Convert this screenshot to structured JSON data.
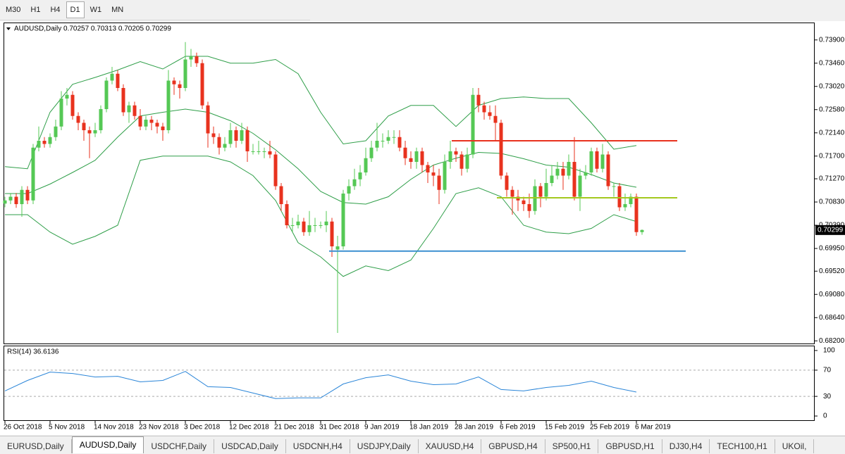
{
  "toolbar": {
    "timeframes": [
      "M30",
      "H1",
      "H4",
      "D1",
      "W1",
      "MN"
    ],
    "active": 3
  },
  "chart": {
    "header": "AUDUSD,Daily  0.70257 0.70313 0.70205 0.70299",
    "ylim": [
      0.6815,
      0.7423
    ],
    "yticks": [
      {
        "value": 0.739,
        "label": "0.73900"
      },
      {
        "value": 0.7346,
        "label": "0.73460"
      },
      {
        "value": 0.7302,
        "label": "0.73020"
      },
      {
        "value": 0.7258,
        "label": "0.72580"
      },
      {
        "value": 0.7214,
        "label": "0.72140"
      },
      {
        "value": 0.717,
        "label": "0.71700"
      },
      {
        "value": 0.7127,
        "label": "0.71270"
      },
      {
        "value": 0.7083,
        "label": "0.70830"
      },
      {
        "value": 0.7039,
        "label": "0.70390"
      },
      {
        "value": 0.6995,
        "label": "0.69950"
      },
      {
        "value": 0.6952,
        "label": "0.69520"
      },
      {
        "value": 0.6908,
        "label": "0.69080"
      },
      {
        "value": 0.6864,
        "label": "0.68640"
      },
      {
        "value": 0.682,
        "label": "0.68200"
      }
    ],
    "bull_color": "#55c855",
    "bear_color": "#e8321e",
    "candles": [
      [
        0.708,
        0.7093,
        0.7073,
        0.7086
      ],
      [
        0.7086,
        0.71,
        0.7079,
        0.7093
      ],
      [
        0.7093,
        0.71,
        0.7072,
        0.7079
      ],
      [
        0.7079,
        0.7113,
        0.7055,
        0.7106
      ],
      [
        0.7106,
        0.7113,
        0.7079,
        0.7086
      ],
      [
        0.7086,
        0.7193,
        0.7079,
        0.7186
      ],
      [
        0.7186,
        0.7226,
        0.7179,
        0.7199
      ],
      [
        0.7199,
        0.7206,
        0.7186,
        0.7193
      ],
      [
        0.7193,
        0.7213,
        0.7186,
        0.7206
      ],
      [
        0.7206,
        0.7239,
        0.7199,
        0.7226
      ],
      [
        0.7226,
        0.7293,
        0.7219,
        0.7279
      ],
      [
        0.7279,
        0.7299,
        0.7266,
        0.7286
      ],
      [
        0.7286,
        0.7293,
        0.7239,
        0.7246
      ],
      [
        0.7246,
        0.7253,
        0.7219,
        0.7233
      ],
      [
        0.7233,
        0.7239,
        0.7199,
        0.7219
      ],
      [
        0.7219,
        0.7226,
        0.7166,
        0.7213
      ],
      [
        0.7213,
        0.7233,
        0.7206,
        0.7219
      ],
      [
        0.7219,
        0.7266,
        0.7213,
        0.7259
      ],
      [
        0.7259,
        0.7319,
        0.7253,
        0.7313
      ],
      [
        0.7313,
        0.7339,
        0.7306,
        0.7326
      ],
      [
        0.7326,
        0.7333,
        0.7293,
        0.7299
      ],
      [
        0.7299,
        0.7306,
        0.7246,
        0.7253
      ],
      [
        0.7253,
        0.7273,
        0.7233,
        0.7266
      ],
      [
        0.7266,
        0.7273,
        0.7239,
        0.7246
      ],
      [
        0.7246,
        0.7259,
        0.7219,
        0.7226
      ],
      [
        0.7226,
        0.7246,
        0.7219,
        0.7239
      ],
      [
        0.7239,
        0.7246,
        0.7219,
        0.7233
      ],
      [
        0.7233,
        0.7239,
        0.7213,
        0.7226
      ],
      [
        0.7226,
        0.7233,
        0.7199,
        0.7219
      ],
      [
        0.7219,
        0.7333,
        0.7213,
        0.7313
      ],
      [
        0.7313,
        0.7319,
        0.7286,
        0.7306
      ],
      [
        0.7306,
        0.7313,
        0.7279,
        0.7299
      ],
      [
        0.7299,
        0.7386,
        0.7293,
        0.7353
      ],
      [
        0.7353,
        0.7373,
        0.7339,
        0.7359
      ],
      [
        0.7359,
        0.7366,
        0.7339,
        0.7346
      ],
      [
        0.7346,
        0.7353,
        0.7259,
        0.7266
      ],
      [
        0.7266,
        0.7273,
        0.7186,
        0.7213
      ],
      [
        0.7213,
        0.7226,
        0.7193,
        0.7206
      ],
      [
        0.7206,
        0.7213,
        0.7173,
        0.7186
      ],
      [
        0.7186,
        0.7206,
        0.7179,
        0.7193
      ],
      [
        0.7193,
        0.7233,
        0.7186,
        0.7219
      ],
      [
        0.7219,
        0.7226,
        0.7186,
        0.7199
      ],
      [
        0.7199,
        0.7233,
        0.7193,
        0.7219
      ],
      [
        0.7219,
        0.7226,
        0.7159,
        0.7179
      ],
      [
        0.7179,
        0.7193,
        0.7173,
        0.7179
      ],
      [
        0.7179,
        0.7199,
        0.7173,
        0.7179
      ],
      [
        0.7179,
        0.7186,
        0.7166,
        0.7179
      ],
      [
        0.7179,
        0.7199,
        0.7166,
        0.7173
      ],
      [
        0.7173,
        0.7179,
        0.7106,
        0.7113
      ],
      [
        0.7113,
        0.7119,
        0.7066,
        0.7079
      ],
      [
        0.7079,
        0.7086,
        0.7033,
        0.7039
      ],
      [
        0.7039,
        0.7053,
        0.7026,
        0.7039
      ],
      [
        0.7039,
        0.7059,
        0.7033,
        0.7046
      ],
      [
        0.7046,
        0.7053,
        0.7019,
        0.7026
      ],
      [
        0.7026,
        0.7066,
        0.7019,
        0.7039
      ],
      [
        0.7039,
        0.7053,
        0.7026,
        0.7039
      ],
      [
        0.7039,
        0.7046,
        0.7033,
        0.7039
      ],
      [
        0.7039,
        0.7066,
        0.7026,
        0.7046
      ],
      [
        0.7046,
        0.7053,
        0.6979,
        0.6999
      ],
      [
        0.6993,
        0.7019,
        0.6835,
        0.6999
      ],
      [
        0.6999,
        0.7106,
        0.6993,
        0.7099
      ],
      [
        0.7099,
        0.7126,
        0.7086,
        0.7113
      ],
      [
        0.7113,
        0.7146,
        0.7106,
        0.7126
      ],
      [
        0.7126,
        0.7153,
        0.7113,
        0.7139
      ],
      [
        0.7139,
        0.7186,
        0.7133,
        0.7166
      ],
      [
        0.7166,
        0.7199,
        0.7159,
        0.7186
      ],
      [
        0.7186,
        0.7233,
        0.7179,
        0.7199
      ],
      [
        0.7199,
        0.7213,
        0.7186,
        0.7199
      ],
      [
        0.7199,
        0.7219,
        0.7193,
        0.7206
      ],
      [
        0.7206,
        0.7219,
        0.7193,
        0.7206
      ],
      [
        0.7206,
        0.7219,
        0.7179,
        0.7186
      ],
      [
        0.7186,
        0.7199,
        0.7153,
        0.7166
      ],
      [
        0.7166,
        0.7179,
        0.7146,
        0.7159
      ],
      [
        0.7159,
        0.7186,
        0.7146,
        0.7179
      ],
      [
        0.7179,
        0.7186,
        0.7139,
        0.7153
      ],
      [
        0.7153,
        0.7159,
        0.7119,
        0.7139
      ],
      [
        0.7139,
        0.7153,
        0.7113,
        0.7133
      ],
      [
        0.7133,
        0.7146,
        0.7079,
        0.7106
      ],
      [
        0.7106,
        0.7173,
        0.7099,
        0.7159
      ],
      [
        0.7159,
        0.7199,
        0.7146,
        0.7179
      ],
      [
        0.7179,
        0.7186,
        0.7159,
        0.7173
      ],
      [
        0.7173,
        0.7179,
        0.7133,
        0.7146
      ],
      [
        0.7146,
        0.7186,
        0.7139,
        0.7173
      ],
      [
        0.7173,
        0.7299,
        0.7166,
        0.7286
      ],
      [
        0.7286,
        0.7299,
        0.7253,
        0.7266
      ],
      [
        0.7266,
        0.7273,
        0.7239,
        0.7253
      ],
      [
        0.7253,
        0.7266,
        0.7239,
        0.7246
      ],
      [
        0.7246,
        0.7266,
        0.7199,
        0.7233
      ],
      [
        0.7233,
        0.7239,
        0.7126,
        0.7133
      ],
      [
        0.7133,
        0.7139,
        0.7093,
        0.7106
      ],
      [
        0.7106,
        0.7113,
        0.7059,
        0.7093
      ],
      [
        0.7093,
        0.7106,
        0.7066,
        0.7086
      ],
      [
        0.7086,
        0.7093,
        0.7066,
        0.7079
      ],
      [
        0.7079,
        0.7099,
        0.7053,
        0.7066
      ],
      [
        0.7066,
        0.7126,
        0.7059,
        0.7113
      ],
      [
        0.7113,
        0.7119,
        0.7073,
        0.7093
      ],
      [
        0.7093,
        0.7146,
        0.7086,
        0.7119
      ],
      [
        0.7119,
        0.7153,
        0.7113,
        0.7133
      ],
      [
        0.7133,
        0.7159,
        0.7126,
        0.7146
      ],
      [
        0.7146,
        0.7159,
        0.7106,
        0.7133
      ],
      [
        0.7133,
        0.7173,
        0.7126,
        0.7159
      ],
      [
        0.7159,
        0.7206,
        0.7086,
        0.7093
      ],
      [
        0.7093,
        0.7146,
        0.7066,
        0.7133
      ],
      [
        0.7133,
        0.7153,
        0.7126,
        0.7139
      ],
      [
        0.7139,
        0.7186,
        0.7133,
        0.7179
      ],
      [
        0.7179,
        0.7186,
        0.7139,
        0.7146
      ],
      [
        0.7146,
        0.7193,
        0.7139,
        0.7173
      ],
      [
        0.7173,
        0.7179,
        0.7106,
        0.7113
      ],
      [
        0.7113,
        0.7119,
        0.7093,
        0.7113
      ],
      [
        0.7113,
        0.7119,
        0.7066,
        0.7073
      ],
      [
        0.7073,
        0.7099,
        0.7066,
        0.7079
      ],
      [
        0.7079,
        0.7099,
        0.7073,
        0.7093
      ],
      [
        0.7093,
        0.7099,
        0.7019,
        0.7026
      ],
      [
        0.7026,
        0.7031,
        0.7021,
        0.703
      ]
    ],
    "bands": {
      "color": "#2e9e48",
      "index": [
        0,
        4,
        8,
        12,
        16,
        20,
        24,
        28,
        32,
        36,
        40,
        44,
        48,
        52,
        56,
        60,
        64,
        68,
        72,
        76,
        80,
        84,
        88,
        92,
        96,
        100,
        104,
        108,
        112
      ],
      "upper": [
        0.715,
        0.7146,
        0.7253,
        0.7306,
        0.7319,
        0.7333,
        0.7349,
        0.7335,
        0.7359,
        0.7359,
        0.7346,
        0.7346,
        0.7353,
        0.7326,
        0.7253,
        0.7193,
        0.7199,
        0.7246,
        0.7266,
        0.7266,
        0.7226,
        0.7266,
        0.7279,
        0.7282,
        0.7279,
        0.7279,
        0.7233,
        0.7183,
        0.719
      ],
      "middle": [
        0.7099,
        0.7099,
        0.7117,
        0.7139,
        0.7162,
        0.7206,
        0.7246,
        0.7253,
        0.7259,
        0.7253,
        0.7237,
        0.7213,
        0.7182,
        0.7146,
        0.7103,
        0.7082,
        0.7079,
        0.7093,
        0.7126,
        0.7153,
        0.7166,
        0.7177,
        0.7175,
        0.7165,
        0.7153,
        0.7149,
        0.7135,
        0.7119,
        0.7111
      ],
      "lower": [
        0.7059,
        0.7059,
        0.7026,
        0.7003,
        0.7018,
        0.7039,
        0.7162,
        0.717,
        0.717,
        0.717,
        0.7159,
        0.7133,
        0.7086,
        0.7006,
        0.6979,
        0.6942,
        0.6962,
        0.6953,
        0.6973,
        0.7033,
        0.7099,
        0.711,
        0.7093,
        0.7039,
        0.7026,
        0.7023,
        0.7033,
        0.7059,
        0.7046
      ]
    },
    "levels": [
      {
        "value": 0.7199,
        "color": "#e8321e"
      },
      {
        "value": 0.7091,
        "color": "#a4c81e"
      },
      {
        "value": 0.699,
        "color": "#3c8fd0"
      }
    ],
    "current_price": {
      "value": 0.70299,
      "label": "0.70299"
    },
    "dates": {
      "index": [
        0,
        8,
        16,
        24,
        32,
        40,
        48,
        56,
        64,
        72,
        80,
        88,
        96,
        104,
        112
      ],
      "labels": [
        "26 Oct 2018",
        "5 Nov 2018",
        "14 Nov 2018",
        "23 Nov 2018",
        "3 Dec 2018",
        "12 Dec 2018",
        "21 Dec 2018",
        "31 Dec 2018",
        "9 Jan 2019",
        "18 Jan 2019",
        "28 Jan 2019",
        "6 Feb 2019",
        "15 Feb 2019",
        "25 Feb 2019",
        "6 Mar 2019"
      ]
    }
  },
  "rsi": {
    "label": "RSI(14) 36.6136",
    "ylim": [
      -6.4,
      106.4
    ],
    "yticks": [
      100,
      70,
      30,
      0
    ],
    "levels": [
      70,
      30
    ],
    "color": "#2a85d8",
    "index": [
      0,
      4,
      8,
      12,
      16,
      20,
      24,
      28,
      32,
      36,
      40,
      44,
      48,
      52,
      56,
      60,
      64,
      68,
      72,
      76,
      80,
      84,
      88,
      92,
      96,
      100,
      104,
      108,
      112
    ],
    "values": [
      38.3,
      54.3,
      67.0,
      64.9,
      59.6,
      60.6,
      52.1,
      54.3,
      68.1,
      44.7,
      43.6,
      35.1,
      26.6,
      27.7,
      27.7,
      48.9,
      58.5,
      62.8,
      53.2,
      47.9,
      48.9,
      59.6,
      40.4,
      38.3,
      43.6,
      46.8,
      53.2,
      43.6,
      36.6
    ]
  },
  "tabs": {
    "items": [
      "EURUSD,Daily",
      "AUDUSD,Daily",
      "USDCHF,Daily",
      "USDCAD,Daily",
      "USDCNH,H4",
      "USDJPY,Daily",
      "XAUUSD,H4",
      "GBPUSD,H4",
      "SP500,H1",
      "GBPUSD,H1",
      "DJ30,H4",
      "TECH100,H1",
      "UKOil,"
    ],
    "active": 1
  }
}
